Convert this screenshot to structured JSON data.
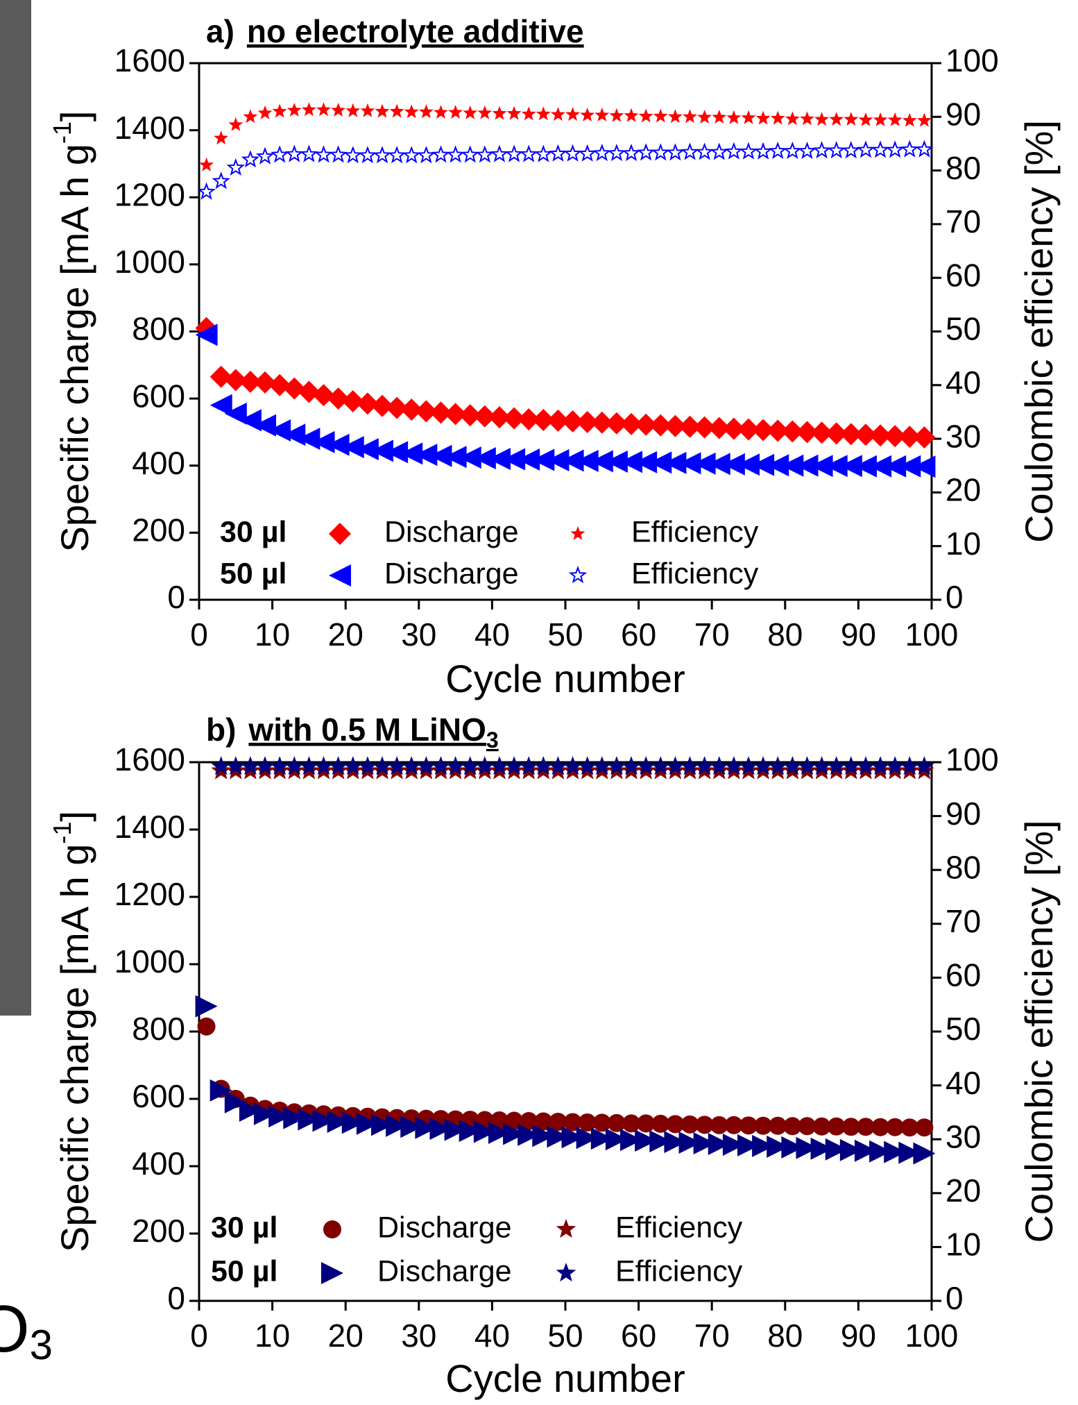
{
  "side_text": "O",
  "side_text_sub": "3",
  "chart_data": [
    {
      "type": "scatter",
      "title_label": "a)",
      "title": "no electrolyte additive",
      "x_label": "Cycle number",
      "y_label": "Specific charge [mA h g",
      "y_label_sup": "-1",
      "y_label_end": "]",
      "y2_label": "Coulombic efficiency [%]",
      "x": [
        1,
        3,
        5,
        7,
        9,
        11,
        13,
        15,
        17,
        19,
        21,
        23,
        25,
        27,
        29,
        31,
        33,
        35,
        37,
        39,
        41,
        43,
        45,
        47,
        49,
        51,
        53,
        55,
        57,
        59,
        61,
        63,
        65,
        67,
        69,
        71,
        73,
        75,
        77,
        79,
        81,
        83,
        85,
        87,
        89,
        91,
        93,
        95,
        97,
        99
      ],
      "xlim": [
        0,
        100
      ],
      "xticks": [
        0,
        10,
        20,
        30,
        40,
        50,
        60,
        70,
        80,
        90,
        100
      ],
      "ylim": [
        0,
        1600
      ],
      "yticks": [
        0,
        200,
        400,
        600,
        800,
        1000,
        1200,
        1400,
        1600
      ],
      "y2lim": [
        0,
        100
      ],
      "y2ticks": [
        0,
        10,
        20,
        30,
        40,
        50,
        60,
        70,
        80,
        90,
        100
      ],
      "series": [
        {
          "group": "30 µl",
          "name": "Discharge",
          "color": "#ff0000",
          "marker": "diamond",
          "values": [
            810,
            665,
            655,
            650,
            648,
            640,
            630,
            620,
            610,
            600,
            592,
            585,
            578,
            572,
            567,
            562,
            558,
            554,
            550,
            547,
            544,
            541,
            538,
            536,
            534,
            532,
            530,
            528,
            526,
            524,
            522,
            520,
            518,
            516,
            514,
            512,
            510,
            508,
            506,
            504,
            502,
            500,
            498,
            496,
            494,
            492,
            490,
            488,
            486,
            484
          ]
        },
        {
          "group": "50 µl",
          "name": "Discharge",
          "color": "#0000ff",
          "marker": "triangle-left",
          "values": [
            790,
            580,
            555,
            535,
            520,
            505,
            492,
            480,
            470,
            462,
            455,
            449,
            444,
            440,
            436,
            432,
            429,
            426,
            424,
            422,
            420,
            419,
            418,
            417,
            416,
            415,
            414,
            413,
            412,
            411,
            410,
            409,
            408,
            407,
            406,
            405,
            404,
            403,
            402,
            401,
            400,
            400,
            399,
            399,
            399,
            398,
            398,
            398,
            398,
            397
          ]
        },
        {
          "group": "30 µl",
          "name": "Efficiency",
          "color": "#ff0000",
          "marker": "star-small",
          "axis": "y2",
          "values": [
            81,
            86,
            88.5,
            90,
            90.7,
            91,
            91.2,
            91.3,
            91.3,
            91.2,
            91.1,
            91.1,
            91.0,
            91.0,
            90.9,
            90.9,
            90.8,
            90.8,
            90.7,
            90.7,
            90.6,
            90.6,
            90.5,
            90.5,
            90.4,
            90.4,
            90.3,
            90.3,
            90.2,
            90.2,
            90.1,
            90.1,
            90.0,
            90.0,
            89.9,
            89.9,
            89.8,
            89.8,
            89.7,
            89.7,
            89.6,
            89.6,
            89.5,
            89.5,
            89.5,
            89.4,
            89.4,
            89.4,
            89.3,
            89.3
          ]
        },
        {
          "group": "50 µl",
          "name": "Efficiency",
          "color": "#0000ff",
          "marker": "star-open",
          "axis": "y2",
          "values": [
            76,
            78,
            80.5,
            82,
            82.6,
            82.9,
            83,
            83,
            82.9,
            82.9,
            82.8,
            82.8,
            82.8,
            82.8,
            82.8,
            82.8,
            82.9,
            82.9,
            82.9,
            82.9,
            83,
            83,
            83,
            83,
            83.1,
            83.1,
            83.1,
            83.2,
            83.2,
            83.2,
            83.3,
            83.3,
            83.3,
            83.4,
            83.4,
            83.4,
            83.5,
            83.5,
            83.5,
            83.6,
            83.6,
            83.6,
            83.7,
            83.7,
            83.7,
            83.8,
            83.8,
            83.8,
            83.9,
            83.9
          ]
        }
      ]
    },
    {
      "type": "scatter",
      "title_label": "b)",
      "title": "with 0.5 M LiNO",
      "title_sub": "3",
      "x_label": "Cycle number",
      "y_label": "Specific charge [mA h g",
      "y_label_sup": "-1",
      "y_label_end": "]",
      "y2_label": "Coulombic efficiency [%]",
      "x": [
        1,
        3,
        5,
        7,
        9,
        11,
        13,
        15,
        17,
        19,
        21,
        23,
        25,
        27,
        29,
        31,
        33,
        35,
        37,
        39,
        41,
        43,
        45,
        47,
        49,
        51,
        53,
        55,
        57,
        59,
        61,
        63,
        65,
        67,
        69,
        71,
        73,
        75,
        77,
        79,
        81,
        83,
        85,
        87,
        89,
        91,
        93,
        95,
        97,
        99
      ],
      "xlim": [
        0,
        100
      ],
      "xticks": [
        0,
        10,
        20,
        30,
        40,
        50,
        60,
        70,
        80,
        90,
        100
      ],
      "ylim": [
        0,
        1600
      ],
      "yticks": [
        0,
        200,
        400,
        600,
        800,
        1000,
        1200,
        1400,
        1600
      ],
      "y2lim": [
        0,
        100
      ],
      "y2ticks": [
        0,
        10,
        20,
        30,
        40,
        50,
        60,
        70,
        80,
        90,
        100
      ],
      "series": [
        {
          "group": "30 µl",
          "name": "Discharge",
          "color": "#800000",
          "marker": "circle",
          "values": [
            815,
            630,
            600,
            580,
            570,
            565,
            560,
            557,
            554,
            551,
            549,
            547,
            545,
            543,
            542,
            541,
            540,
            539,
            538,
            537,
            536,
            535,
            534,
            533,
            532,
            531,
            530,
            529,
            528,
            527,
            527,
            526,
            525,
            524,
            523,
            522,
            522,
            521,
            520,
            520,
            519,
            519,
            518,
            518,
            517,
            517,
            516,
            516,
            515,
            515
          ]
        },
        {
          "group": "50 µl",
          "name": "Discharge",
          "color": "#000080",
          "marker": "triangle-right",
          "values": [
            875,
            625,
            590,
            565,
            555,
            548,
            543,
            539,
            535,
            532,
            529,
            526,
            523,
            520,
            517,
            514,
            511,
            508,
            505,
            502,
            499,
            496,
            493,
            490,
            488,
            486,
            484,
            482,
            480,
            478,
            476,
            474,
            472,
            470,
            468,
            466,
            464,
            462,
            460,
            458,
            456,
            454,
            452,
            450,
            448,
            446,
            444,
            442,
            440,
            438
          ]
        },
        {
          "group": "30 µl",
          "name": "Efficiency",
          "color": "#800000",
          "marker": "star",
          "axis": "y2",
          "values": [
            null,
            98.4,
            98.4,
            98.4,
            98.4,
            98.4,
            98.4,
            98.4,
            98.4,
            98.4,
            98.4,
            98.4,
            98.4,
            98.4,
            98.4,
            98.4,
            98.4,
            98.4,
            98.4,
            98.4,
            98.4,
            98.4,
            98.4,
            98.4,
            98.4,
            98.4,
            98.4,
            98.4,
            98.4,
            98.4,
            98.4,
            98.4,
            98.4,
            98.4,
            98.4,
            98.4,
            98.4,
            98.4,
            98.4,
            98.4,
            98.4,
            98.4,
            98.4,
            98.4,
            98.4,
            98.4,
            98.4,
            98.4,
            98.4,
            98.4
          ]
        },
        {
          "group": "50 µl",
          "name": "Efficiency",
          "color": "#000080",
          "marker": "star",
          "axis": "y2",
          "values": [
            null,
            99.2,
            99.2,
            99.2,
            99.2,
            99.2,
            99.2,
            99.2,
            99.2,
            99.2,
            99.2,
            99.2,
            99.2,
            99.2,
            99.2,
            99.2,
            99.2,
            99.2,
            99.2,
            99.2,
            99.2,
            99.2,
            99.2,
            99.2,
            99.2,
            99.2,
            99.2,
            99.2,
            99.2,
            99.2,
            99.2,
            99.2,
            99.2,
            99.2,
            99.2,
            99.2,
            99.2,
            99.2,
            99.2,
            99.2,
            99.2,
            99.2,
            99.2,
            99.2,
            99.2,
            99.2,
            99.2,
            99.2,
            99.2,
            99.2
          ]
        }
      ]
    }
  ]
}
